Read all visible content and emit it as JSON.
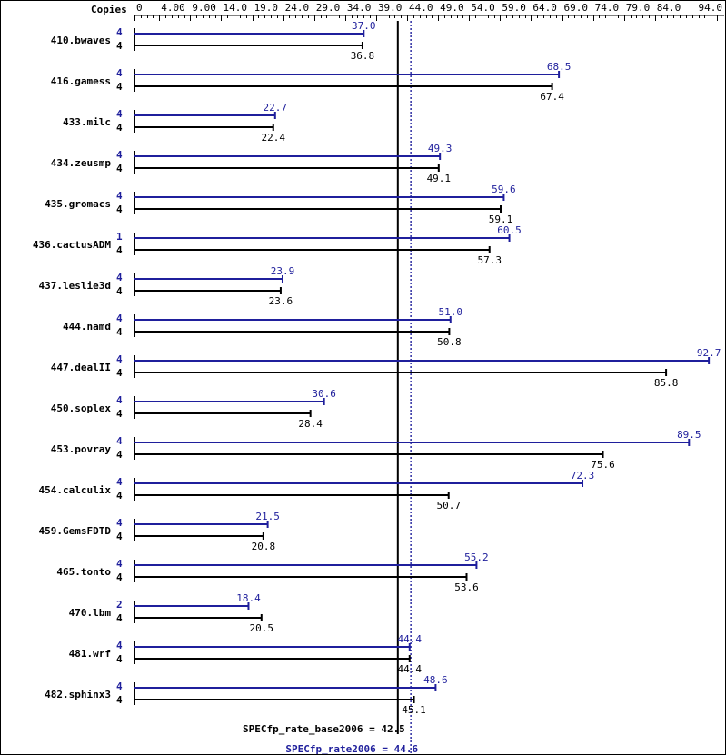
{
  "chart_data": {
    "type": "bar",
    "orientation": "horizontal",
    "axis": {
      "header_label": "Copies",
      "min": 0,
      "max": 94,
      "ticks": [
        0,
        4,
        9,
        14,
        19,
        24,
        29,
        34,
        39,
        44,
        49,
        54,
        59,
        64,
        69,
        74,
        79,
        84,
        94
      ],
      "tick_labels": [
        "0",
        "4.00",
        "9.00",
        "14.0",
        "19.0",
        "24.0",
        "29.0",
        "34.0",
        "39.0",
        "44.0",
        "49.0",
        "54.0",
        "59.0",
        "64.0",
        "69.0",
        "74.0",
        "79.0",
        "84.0",
        "94.0"
      ]
    },
    "categories": [
      "410.bwaves",
      "416.gamess",
      "433.milc",
      "434.zeusmp",
      "435.gromacs",
      "436.cactusADM",
      "437.leslie3d",
      "444.namd",
      "447.dealII",
      "450.soplex",
      "453.povray",
      "454.calculix",
      "459.GemsFDTD",
      "465.tonto",
      "470.lbm",
      "481.wrf",
      "482.sphinx3"
    ],
    "series": [
      {
        "name": "SPECfp_rate2006",
        "color": "#1f1f9c",
        "copies": [
          "4",
          "4",
          "4",
          "4",
          "4",
          "1",
          "4",
          "4",
          "4",
          "4",
          "4",
          "4",
          "4",
          "4",
          "2",
          "4",
          "4"
        ],
        "values": [
          37.0,
          68.5,
          22.7,
          49.3,
          59.6,
          60.5,
          23.9,
          51.0,
          92.7,
          30.6,
          89.5,
          72.3,
          21.5,
          55.2,
          18.4,
          44.4,
          48.6
        ],
        "value_labels": [
          "37.0",
          "68.5",
          "22.7",
          "49.3",
          "59.6",
          "60.5",
          "23.9",
          "51.0",
          "92.7",
          "30.6",
          "89.5",
          "72.3",
          "21.5",
          "55.2",
          "18.4",
          "44.4",
          "48.6"
        ]
      },
      {
        "name": "SPECfp_rate_base2006",
        "color": "#000000",
        "copies": [
          "4",
          "4",
          "4",
          "4",
          "4",
          "4",
          "4",
          "4",
          "4",
          "4",
          "4",
          "4",
          "4",
          "4",
          "4",
          "4",
          "4"
        ],
        "values": [
          36.8,
          67.4,
          22.4,
          49.1,
          59.1,
          57.3,
          23.6,
          50.8,
          85.8,
          28.4,
          75.6,
          50.7,
          20.8,
          53.6,
          20.5,
          44.4,
          45.1
        ],
        "value_labels": [
          "36.8",
          "67.4",
          "22.4",
          "49.1",
          "59.1",
          "57.3",
          "23.6",
          "50.8",
          "85.8",
          "28.4",
          "75.6",
          "50.7",
          "20.8",
          "53.6",
          "20.5",
          "44.4",
          "45.1"
        ]
      }
    ],
    "reference_lines": [
      {
        "series": "SPECfp_rate_base2006",
        "value": 42.5,
        "label": "SPECfp_rate_base2006 = 42.5",
        "style": "solid",
        "color": "#000000"
      },
      {
        "series": "SPECfp_rate2006",
        "value": 44.6,
        "label": "SPECfp_rate2006 = 44.6",
        "style": "dotted",
        "color": "#1f1f9c"
      }
    ]
  }
}
